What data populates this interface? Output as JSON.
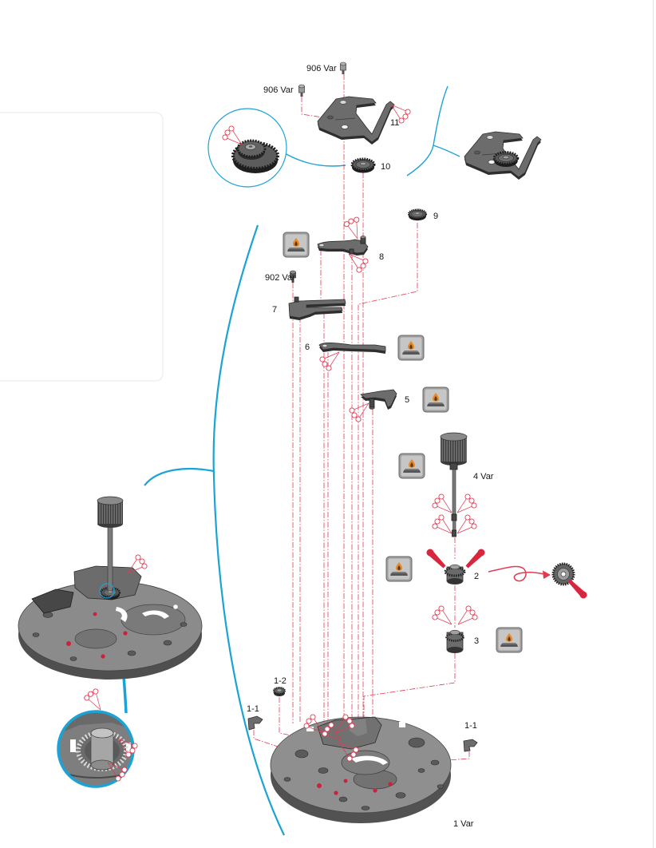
{
  "figure": {
    "labels": {
      "screw_906_top": "906 Var",
      "screw_906_left": "906 Var",
      "part_11": "11",
      "part_10": "10",
      "part_9": "9",
      "part_8": "8",
      "screw_902": "902 Var",
      "part_7": "7",
      "part_6": "6",
      "part_5": "5",
      "part_4": "4 Var",
      "part_2": "2",
      "part_3": "3",
      "part_1_2": "1-2",
      "part_1_1_left": "1-1",
      "part_1_1_right": "1-1",
      "part_1": "1 Var"
    },
    "colors": {
      "callout_line": "#1ba3d6",
      "assembly_axis": "#e23a52",
      "grease_marker": "#d9263f",
      "metal_part": "#6c6c6c",
      "oil_icon_flame": "#e8892a"
    },
    "icons": {
      "oil_symbol": "oil-can-flame-icon",
      "lubrication_point": "oil-point-icon",
      "grease_point": "grease-point-icon",
      "magnifier": "magnifier-circle-icon"
    }
  }
}
